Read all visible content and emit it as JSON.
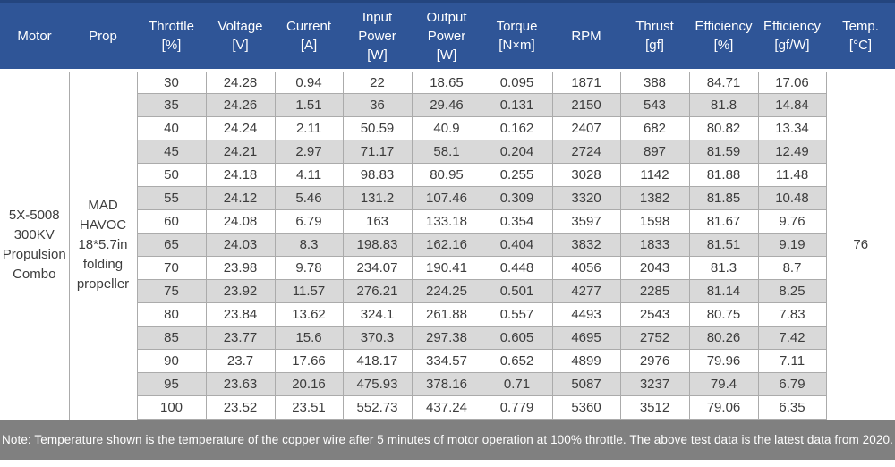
{
  "colors": {
    "header_bg": "#2F5597",
    "header_top_border": "#24457E",
    "header_text": "#FFFFFF",
    "stripe_bg": "#D9D9D9",
    "row_bg": "#FFFFFF",
    "border": "#ABABAB",
    "text": "#3C3C3C",
    "footer_bg": "#808080",
    "footer_text": "#FFFFFF"
  },
  "table": {
    "headers": [
      "Motor",
      "Prop",
      "Throttle\n[%]",
      "Voltage\n[V]",
      "Current\n[A]",
      "Input\nPower\n[W]",
      "Output\nPower\n[W]",
      "Torque\n[N×m]",
      "RPM",
      "Thrust\n[gf]",
      "Efficiency\n[%]",
      "Efficiency\n[gf/W]",
      "Temp.\n[°C]"
    ],
    "motor": "5X-5008\n300KV\nPropulsion\nCombo",
    "prop": "MAD\nHAVOC\n18*5.7in\nfolding\npropeller",
    "temp": "76",
    "rows": [
      [
        "30",
        "24.28",
        "0.94",
        "22",
        "18.65",
        "0.095",
        "1871",
        "388",
        "84.71",
        "17.06"
      ],
      [
        "35",
        "24.26",
        "1.51",
        "36",
        "29.46",
        "0.131",
        "2150",
        "543",
        "81.8",
        "14.84"
      ],
      [
        "40",
        "24.24",
        "2.11",
        "50.59",
        "40.9",
        "0.162",
        "2407",
        "682",
        "80.82",
        "13.34"
      ],
      [
        "45",
        "24.21",
        "2.97",
        "71.17",
        "58.1",
        "0.204",
        "2724",
        "897",
        "81.59",
        "12.49"
      ],
      [
        "50",
        "24.18",
        "4.11",
        "98.83",
        "80.95",
        "0.255",
        "3028",
        "1142",
        "81.88",
        "11.48"
      ],
      [
        "55",
        "24.12",
        "5.46",
        "131.2",
        "107.46",
        "0.309",
        "3320",
        "1382",
        "81.85",
        "10.48"
      ],
      [
        "60",
        "24.08",
        "6.79",
        "163",
        "133.18",
        "0.354",
        "3597",
        "1598",
        "81.67",
        "9.76"
      ],
      [
        "65",
        "24.03",
        "8.3",
        "198.83",
        "162.16",
        "0.404",
        "3832",
        "1833",
        "81.51",
        "9.19"
      ],
      [
        "70",
        "23.98",
        "9.78",
        "234.07",
        "190.41",
        "0.448",
        "4056",
        "2043",
        "81.3",
        "8.7"
      ],
      [
        "75",
        "23.92",
        "11.57",
        "276.21",
        "224.25",
        "0.501",
        "4277",
        "2285",
        "81.14",
        "8.25"
      ],
      [
        "80",
        "23.84",
        "13.62",
        "324.1",
        "261.88",
        "0.557",
        "4493",
        "2543",
        "80.75",
        "7.83"
      ],
      [
        "85",
        "23.77",
        "15.6",
        "370.3",
        "297.38",
        "0.605",
        "4695",
        "2752",
        "80.26",
        "7.42"
      ],
      [
        "90",
        "23.7",
        "17.66",
        "418.17",
        "334.57",
        "0.652",
        "4899",
        "2976",
        "79.96",
        "7.11"
      ],
      [
        "95",
        "23.63",
        "20.16",
        "475.93",
        "378.16",
        "0.71",
        "5087",
        "3237",
        "79.4",
        "6.79"
      ],
      [
        "100",
        "23.52",
        "23.51",
        "552.73",
        "437.24",
        "0.779",
        "5360",
        "3512",
        "79.06",
        "6.35"
      ]
    ]
  },
  "note": "Note: Temperature shown is the temperature of the copper wire after 5 minutes of motor operation at 100% throttle. The above test data is the latest data from 2020."
}
